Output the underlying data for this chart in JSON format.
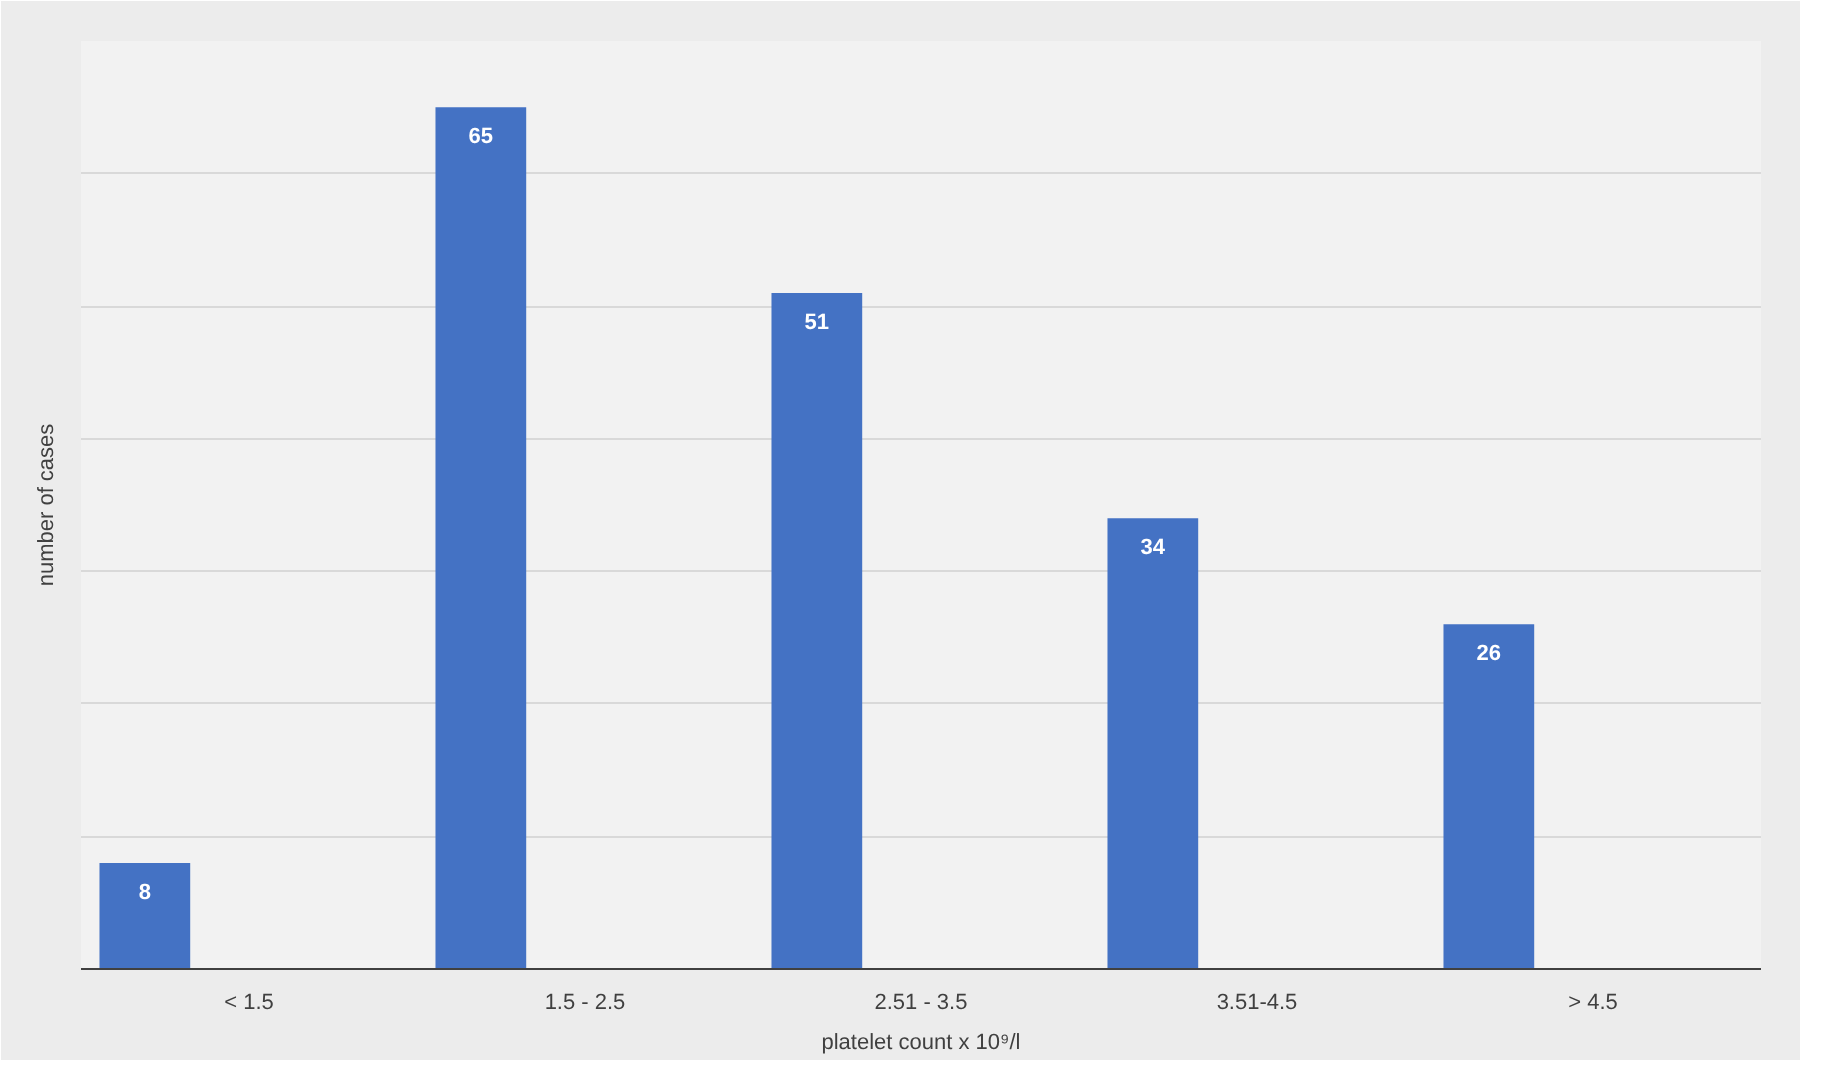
{
  "chart_data": {
    "type": "bar",
    "xlabel": "platelet count x 10⁹/l",
    "ylabel": "number of cases",
    "categories": [
      "< 1.5",
      "1.5 - 2.5",
      "2.51 - 3.5",
      "3.51-4.5",
      "> 4.5"
    ],
    "values": [
      8,
      65,
      51,
      34,
      26
    ],
    "color": "#4472c4",
    "data_labels": true,
    "ylim": [
      0,
      70
    ],
    "yticks": [
      {
        "value": 0,
        "label": null
      },
      {
        "value": 10,
        "label": null
      },
      {
        "value": 20,
        "label": null
      },
      {
        "value": 30,
        "label": null
      },
      {
        "value": 40,
        "label": null
      },
      {
        "value": 50,
        "label": null
      },
      {
        "value": 60,
        "label": null
      },
      {
        "value": 70,
        "label": null
      }
    ],
    "grid": "y"
  }
}
